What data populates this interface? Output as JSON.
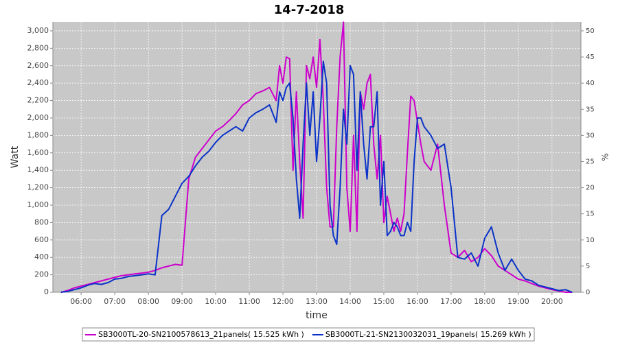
{
  "chart_data": {
    "type": "line",
    "title": "14-7-2018",
    "xlabel": "time",
    "ylabel": "Watt",
    "y2label": "%",
    "x": [
      5.4,
      5.6,
      5.8,
      6.0,
      6.2,
      6.4,
      6.6,
      6.8,
      7.0,
      7.2,
      7.4,
      7.6,
      7.8,
      8.0,
      8.2,
      8.4,
      8.6,
      8.8,
      9.0,
      9.2,
      9.4,
      9.6,
      9.8,
      10.0,
      10.2,
      10.4,
      10.6,
      10.8,
      11.0,
      11.2,
      11.4,
      11.6,
      11.8,
      11.9,
      12.0,
      12.1,
      12.2,
      12.3,
      12.4,
      12.5,
      12.6,
      12.7,
      12.8,
      12.9,
      13.0,
      13.1,
      13.2,
      13.3,
      13.4,
      13.5,
      13.6,
      13.7,
      13.8,
      13.9,
      14.0,
      14.1,
      14.2,
      14.3,
      14.4,
      14.5,
      14.6,
      14.7,
      14.8,
      14.9,
      15.0,
      15.1,
      15.2,
      15.3,
      15.4,
      15.5,
      15.6,
      15.7,
      15.8,
      15.9,
      16.0,
      16.1,
      16.2,
      16.4,
      16.6,
      16.8,
      17.0,
      17.2,
      17.4,
      17.6,
      17.8,
      18.0,
      18.2,
      18.4,
      18.6,
      18.8,
      19.0,
      19.2,
      19.4,
      19.6,
      19.8,
      20.0,
      20.2,
      20.4,
      20.6
    ],
    "series": [
      {
        "name": "SB3000TL-20-SN2100578613_21panels( 15.525 kWh )",
        "color": "#cc00cc",
        "values": [
          0,
          20,
          50,
          70,
          90,
          110,
          130,
          150,
          170,
          190,
          200,
          210,
          220,
          230,
          250,
          280,
          300,
          320,
          310,
          1300,
          1550,
          1650,
          1750,
          1850,
          1900,
          1970,
          2050,
          2150,
          2200,
          2280,
          2310,
          2350,
          2200,
          2600,
          2400,
          2700,
          2680,
          1400,
          2300,
          1500,
          850,
          2600,
          2450,
          2700,
          2350,
          2900,
          2200,
          1200,
          750,
          750,
          1900,
          2700,
          3100,
          1200,
          700,
          1800,
          700,
          2300,
          2100,
          2400,
          2500,
          1700,
          1300,
          1800,
          800,
          1100,
          900,
          700,
          850,
          700,
          900,
          1600,
          2250,
          2200,
          1950,
          1700,
          1500,
          1400,
          1700,
          1000,
          450,
          400,
          480,
          350,
          400,
          500,
          420,
          300,
          250,
          200,
          150,
          130,
          100,
          70,
          50,
          30,
          15,
          0,
          0
        ]
      },
      {
        "name": "SB3000TL-21-SN2130032031_19panels( 15.269 kWh )",
        "color": "#0a32c8",
        "values": [
          0,
          10,
          30,
          50,
          80,
          100,
          90,
          110,
          150,
          160,
          180,
          190,
          200,
          210,
          200,
          880,
          950,
          1100,
          1250,
          1330,
          1450,
          1550,
          1620,
          1720,
          1800,
          1850,
          1900,
          1850,
          2000,
          2060,
          2100,
          2150,
          1950,
          2300,
          2200,
          2350,
          2400,
          2000,
          1300,
          850,
          1700,
          2400,
          1800,
          2300,
          1500,
          2000,
          2650,
          2400,
          1000,
          650,
          550,
          1200,
          2100,
          1700,
          2600,
          2500,
          1400,
          2300,
          1700,
          1300,
          1900,
          1900,
          2300,
          1000,
          1500,
          650,
          700,
          800,
          750,
          650,
          650,
          800,
          700,
          1500,
          2000,
          2000,
          1900,
          1800,
          1650,
          1700,
          1200,
          400,
          380,
          450,
          300,
          620,
          750,
          450,
          250,
          380,
          250,
          150,
          130,
          80,
          60,
          40,
          20,
          30,
          0
        ]
      }
    ],
    "xlim": [
      5.16,
      20.86
    ],
    "xticks": [
      {
        "value": 6,
        "label": "06:00"
      },
      {
        "value": 7,
        "label": "07:00"
      },
      {
        "value": 8,
        "label": "08:00"
      },
      {
        "value": 9,
        "label": "09:00"
      },
      {
        "value": 10,
        "label": "10:00"
      },
      {
        "value": 11,
        "label": "11:00"
      },
      {
        "value": 12,
        "label": "12:00"
      },
      {
        "value": 13,
        "label": "13:00"
      },
      {
        "value": 14,
        "label": "14:00"
      },
      {
        "value": 15,
        "label": "15:00"
      },
      {
        "value": 16,
        "label": "16:00"
      },
      {
        "value": 17,
        "label": "17:00"
      },
      {
        "value": 18,
        "label": "18:00"
      },
      {
        "value": 19,
        "label": "19:00"
      },
      {
        "value": 20,
        "label": "20:00"
      }
    ],
    "ylim": [
      0,
      3102
    ],
    "yticks": [
      0,
      200,
      400,
      600,
      800,
      {
        "value": 1000,
        "label": "1,000"
      },
      {
        "value": 1200,
        "label": "1,200"
      },
      {
        "value": 1400,
        "label": "1,400"
      },
      {
        "value": 1600,
        "label": "1,600"
      },
      {
        "value": 1800,
        "label": "1,800"
      },
      {
        "value": 2000,
        "label": "2,000"
      },
      {
        "value": 2200,
        "label": "2,200"
      },
      {
        "value": 2400,
        "label": "2,400"
      },
      {
        "value": 2600,
        "label": "2,600"
      },
      {
        "value": 2800,
        "label": "2,800"
      },
      {
        "value": 3000,
        "label": "3,000"
      }
    ],
    "y2lim": [
      0,
      51.7
    ],
    "y2ticks": [
      0,
      5,
      10,
      15,
      20,
      25,
      30,
      35,
      40,
      45,
      50
    ],
    "grid": true,
    "legend": "bottom"
  }
}
